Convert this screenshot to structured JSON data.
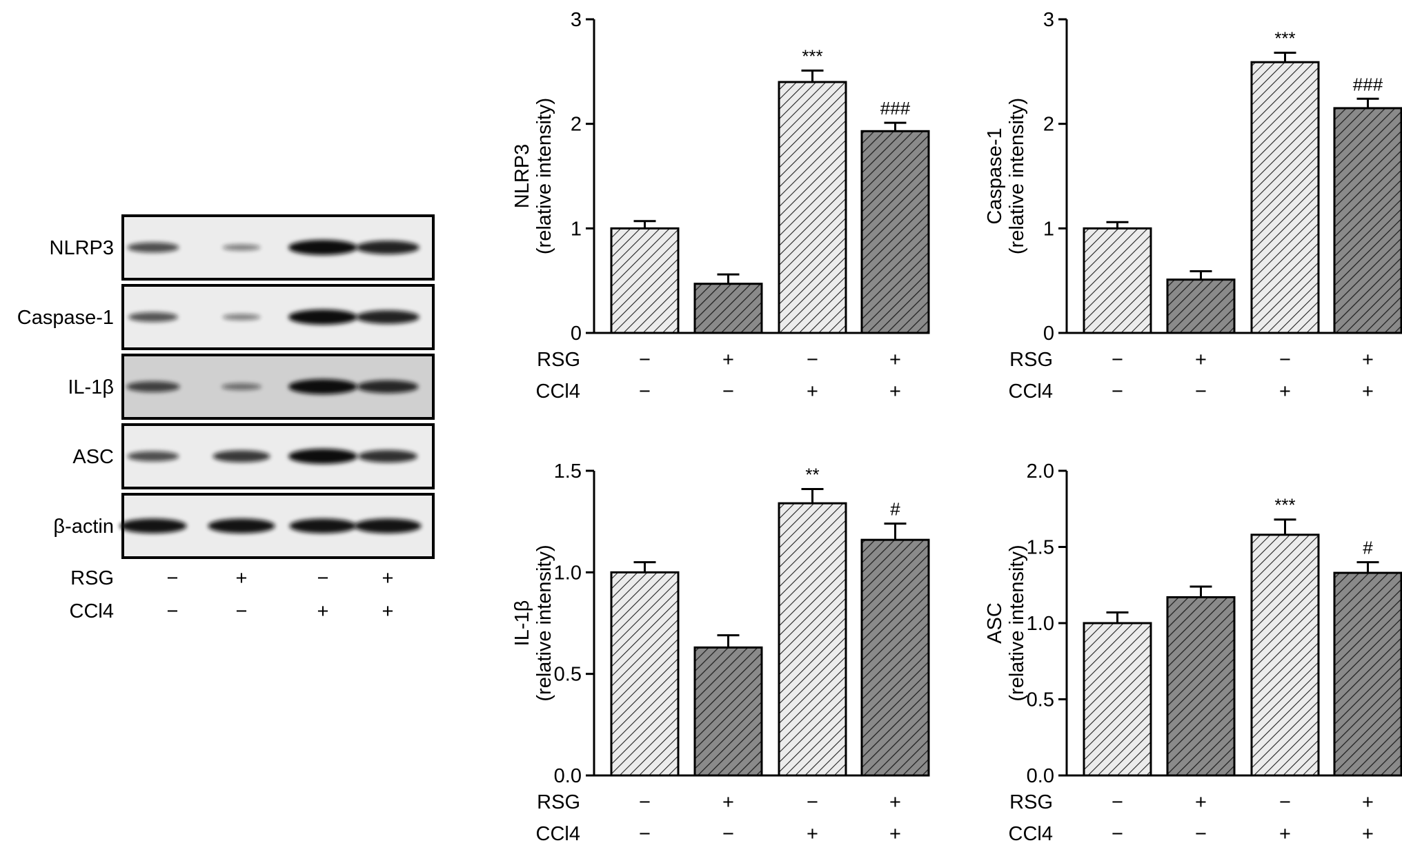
{
  "western_blot": {
    "bands": [
      {
        "label": "NLRP3",
        "intensities": [
          0.55,
          0.2,
          1.0,
          0.85
        ]
      },
      {
        "label": "Caspase-1",
        "intensities": [
          0.5,
          0.2,
          1.0,
          0.85
        ]
      },
      {
        "label": "IL-1β",
        "intensities": [
          0.6,
          0.25,
          1.0,
          0.8
        ]
      },
      {
        "label": "ASC",
        "intensities": [
          0.55,
          0.7,
          1.0,
          0.75
        ]
      },
      {
        "label": "β-actin",
        "intensities": [
          0.95,
          0.95,
          0.95,
          0.95
        ]
      }
    ],
    "conditions": [
      {
        "label": "RSG",
        "values": [
          "−",
          "+",
          "−",
          "+"
        ]
      },
      {
        "label": "CCl4",
        "values": [
          "−",
          "−",
          "+",
          "+"
        ]
      }
    ]
  },
  "chart_data": [
    {
      "type": "bar",
      "ylabel_line1": "NLRP3",
      "ylabel_line2": "(relative intensity)",
      "ylim": [
        0,
        3
      ],
      "yticks": [
        0,
        1,
        2,
        3
      ],
      "tick_decimals": 0,
      "values": [
        1.0,
        0.47,
        2.4,
        1.93
      ],
      "errors": [
        0.07,
        0.09,
        0.11,
        0.08
      ],
      "annotations": [
        "",
        "",
        "***",
        "###"
      ],
      "conditions": [
        {
          "label": "RSG",
          "values": [
            "−",
            "+",
            "−",
            "+"
          ]
        },
        {
          "label": "CCl4",
          "values": [
            "−",
            "−",
            "+",
            "+"
          ]
        }
      ]
    },
    {
      "type": "bar",
      "ylabel_line1": "Caspase-1",
      "ylabel_line2": "(relative intensity)",
      "ylim": [
        0,
        3
      ],
      "yticks": [
        0,
        1,
        2,
        3
      ],
      "tick_decimals": 0,
      "values": [
        1.0,
        0.51,
        2.59,
        2.15
      ],
      "errors": [
        0.06,
        0.08,
        0.09,
        0.09
      ],
      "annotations": [
        "",
        "",
        "***",
        "###"
      ],
      "conditions": [
        {
          "label": "RSG",
          "values": [
            "−",
            "+",
            "−",
            "+"
          ]
        },
        {
          "label": "CCl4",
          "values": [
            "−",
            "−",
            "+",
            "+"
          ]
        }
      ]
    },
    {
      "type": "bar",
      "ylabel_line1": "IL-1β",
      "ylabel_line2": "(relative intensity)",
      "ylim": [
        0,
        1.5
      ],
      "yticks": [
        0.0,
        0.5,
        1.0,
        1.5
      ],
      "tick_decimals": 1,
      "values": [
        1.0,
        0.63,
        1.34,
        1.16
      ],
      "errors": [
        0.05,
        0.06,
        0.07,
        0.08
      ],
      "annotations": [
        "",
        "",
        "**",
        "#"
      ],
      "conditions": [
        {
          "label": "RSG",
          "values": [
            "−",
            "+",
            "−",
            "+"
          ]
        },
        {
          "label": "CCl4",
          "values": [
            "−",
            "−",
            "+",
            "+"
          ]
        }
      ]
    },
    {
      "type": "bar",
      "ylabel_line1": "ASC",
      "ylabel_line2": "(relative intensity)",
      "ylim": [
        0,
        2.0
      ],
      "yticks": [
        0.0,
        0.5,
        1.0,
        1.5,
        2.0
      ],
      "tick_decimals": 1,
      "values": [
        1.0,
        1.17,
        1.58,
        1.33
      ],
      "errors": [
        0.07,
        0.07,
        0.1,
        0.07
      ],
      "annotations": [
        "",
        "",
        "***",
        "#"
      ],
      "conditions": [
        {
          "label": "RSG",
          "values": [
            "−",
            "+",
            "−",
            "+"
          ]
        },
        {
          "label": "CCl4",
          "values": [
            "−",
            "−",
            "+",
            "+"
          ]
        }
      ]
    }
  ],
  "colors": {
    "light_bar": "#ececec",
    "dark_bar": "#8a8a8a",
    "hatch": "#222222",
    "blot_bg": "#ececec",
    "band": "#111111"
  }
}
